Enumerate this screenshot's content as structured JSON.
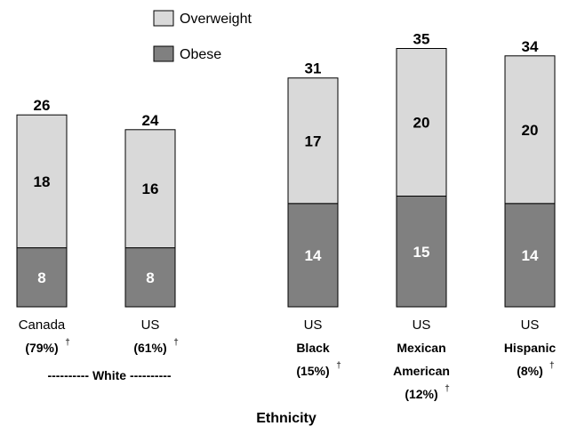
{
  "chart_data": {
    "type": "bar",
    "stacked": true,
    "categories": [
      {
        "line1": "Canada",
        "sub_lines": [
          "(79%)"
        ],
        "dagger": "†"
      },
      {
        "line1": "US",
        "sub_lines": [
          "(61%)"
        ],
        "dagger": "†"
      },
      {
        "line1": "US",
        "sub_lines": [
          "Black",
          "(15%)"
        ],
        "dagger": "†"
      },
      {
        "line1": "US",
        "sub_lines": [
          "Mexican",
          "American",
          "(12%)"
        ],
        "dagger": "†"
      },
      {
        "line1": "US",
        "sub_lines": [
          "Hispanic",
          "(8%)"
        ],
        "dagger": "†"
      }
    ],
    "group_label": "---------- White ----------",
    "series": [
      {
        "name": "Obese",
        "values": [
          8,
          8,
          14,
          15,
          14
        ],
        "color": "#808080"
      },
      {
        "name": "Overweight",
        "values": [
          18,
          16,
          17,
          20,
          20
        ],
        "color": "#d9d9d9"
      }
    ],
    "totals": [
      26,
      24,
      31,
      35,
      34
    ],
    "xlabel": "Ethnicity",
    "ylabel": "",
    "ylim": [
      0,
      35
    ],
    "grid": false,
    "legend_position": "top-center"
  }
}
